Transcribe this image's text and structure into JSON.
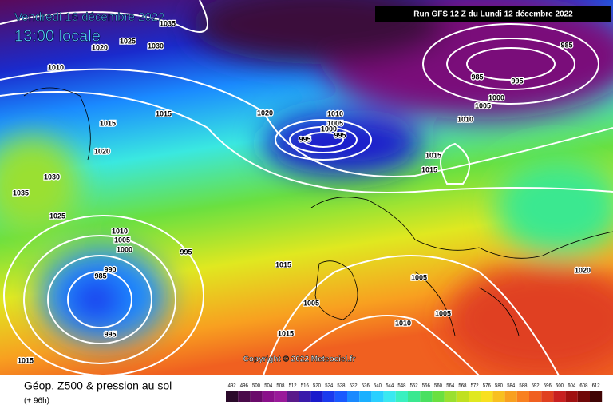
{
  "header": {
    "date": "Vendredi 16 décembre 2022",
    "time": "13:00 locale",
    "run": "Run GFS 12 Z du Lundi 12 décembre 2022"
  },
  "copyright": "Copyright © 2022 Meteociel.fr",
  "footer": {
    "title": "Géop. Z500 & pression au sol",
    "range": "(+ 96h)"
  },
  "isobar_labels": [
    "1035",
    "1020",
    "1025",
    "1030",
    "1010",
    "1015",
    "1015",
    "1020",
    "1020",
    "1010",
    "1005",
    "1000",
    "995",
    "995",
    "985",
    "985",
    "995",
    "1000",
    "1005",
    "1010",
    "1015",
    "1015",
    "1030",
    "1035",
    "1025",
    "1010",
    "1005",
    "1000",
    "995",
    "990",
    "985",
    "995",
    "1015",
    "1005",
    "1005",
    "1005",
    "1010",
    "1015",
    "1020",
    "1015"
  ],
  "colorbar": {
    "levels": [
      492,
      496,
      500,
      504,
      508,
      512,
      516,
      520,
      524,
      528,
      532,
      536,
      540,
      544,
      548,
      552,
      556,
      560,
      564,
      568,
      572,
      576,
      580,
      584,
      588,
      592,
      596,
      600,
      604,
      608,
      612
    ],
    "colors": [
      "#2a0a2a",
      "#4a0a4a",
      "#6a0a6a",
      "#8a108a",
      "#9a1a9a",
      "#5a1a8a",
      "#3a1aaa",
      "#1a1acc",
      "#1a3aee",
      "#1a5aff",
      "#1a8aff",
      "#1ab0ff",
      "#2ad0ff",
      "#3ae8f0",
      "#3af0c0",
      "#3ae890",
      "#4ae060",
      "#6ae040",
      "#9ae030",
      "#c0e020",
      "#e0e820",
      "#f8e020",
      "#f8c020",
      "#f8a020",
      "#f88020",
      "#f06020",
      "#e04020",
      "#c82020",
      "#a01010",
      "#700808",
      "#400404"
    ]
  }
}
